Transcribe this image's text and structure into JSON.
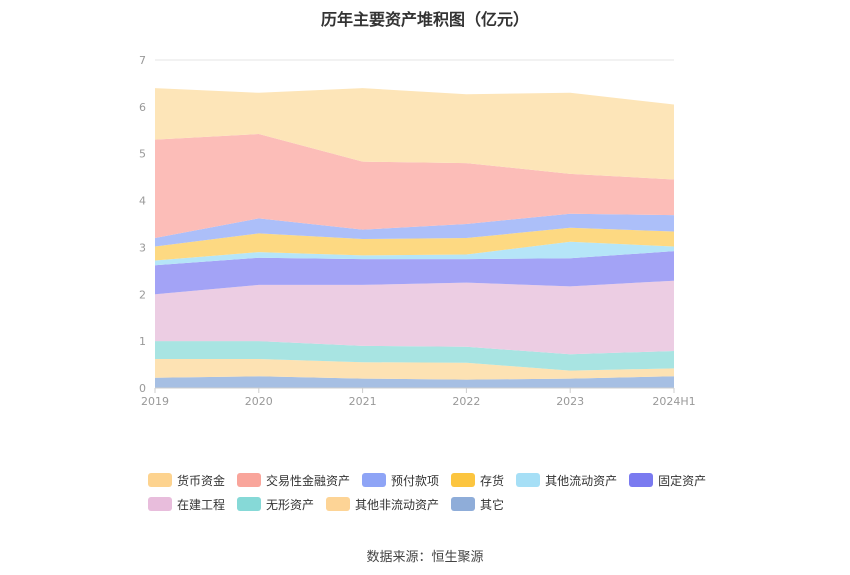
{
  "title": "历年主要资产堆积图（亿元）",
  "source": "数据来源：恒生聚源",
  "chart_data": {
    "type": "area",
    "stacked": true,
    "categories": [
      "2019",
      "2020",
      "2021",
      "2022",
      "2023",
      "2024H1"
    ],
    "ylim": [
      0,
      7
    ],
    "yticks": [
      0,
      1,
      2,
      3,
      4,
      5,
      6,
      7
    ],
    "grid": true,
    "legend_position": "bottom",
    "series": [
      {
        "name": "其它",
        "color": "#a6bfe3",
        "values": [
          0.22,
          0.25,
          0.2,
          0.18,
          0.2,
          0.25
        ]
      },
      {
        "name": "其他非流动资产",
        "color": "#fde2b3",
        "values": [
          0.4,
          0.37,
          0.35,
          0.36,
          0.17,
          0.17
        ]
      },
      {
        "name": "无形资产",
        "color": "#a8e4e2",
        "values": [
          0.38,
          0.38,
          0.35,
          0.34,
          0.35,
          0.37
        ]
      },
      {
        "name": "在建工程",
        "color": "#eccde3",
        "values": [
          1.0,
          1.2,
          1.3,
          1.37,
          1.45,
          1.5
        ]
      },
      {
        "name": "固定资产",
        "color": "#a3a3f6",
        "values": [
          0.62,
          0.58,
          0.55,
          0.5,
          0.6,
          0.63
        ]
      },
      {
        "name": "其他流动资产",
        "color": "#b5e5f8",
        "values": [
          0.1,
          0.12,
          0.08,
          0.1,
          0.35,
          0.1
        ]
      },
      {
        "name": "存货",
        "color": "#fdd982",
        "values": [
          0.3,
          0.4,
          0.35,
          0.35,
          0.3,
          0.32
        ]
      },
      {
        "name": "预付款项",
        "color": "#acbff9",
        "values": [
          0.18,
          0.32,
          0.2,
          0.3,
          0.3,
          0.35
        ]
      },
      {
        "name": "交易性金融资产",
        "color": "#fcbdb8",
        "values": [
          2.1,
          1.8,
          1.45,
          1.3,
          0.85,
          0.76
        ]
      },
      {
        "name": "货币资金",
        "color": "#fde5b8",
        "values": [
          1.1,
          0.88,
          1.57,
          1.47,
          1.73,
          1.6
        ]
      }
    ],
    "legend_order": [
      "货币资金",
      "交易性金融资产",
      "预付款项",
      "存货",
      "其他流动资产",
      "固定资产",
      "在建工程",
      "无形资产",
      "其他非流动资产",
      "其它"
    ],
    "legend_colors": {
      "货币资金": "#fdd38f",
      "交易性金融资产": "#f9a59b",
      "预付款项": "#8ea4f6",
      "存货": "#fcc53f",
      "其他流动资产": "#a6dff6",
      "固定资产": "#7a7af0",
      "在建工程": "#e8bddc",
      "无形资产": "#86d9d7",
      "其他非流动资产": "#fdd496",
      "其它": "#8fadd9"
    }
  }
}
